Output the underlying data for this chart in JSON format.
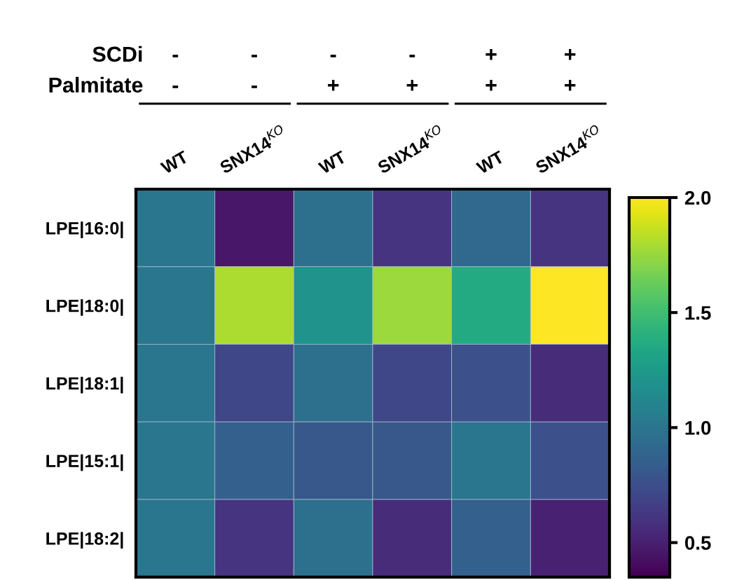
{
  "chart_data": {
    "type": "heatmap",
    "categories": [
      "WT",
      "SNX14$^{KO}$",
      "WT",
      "SNX14$^{KO}$",
      "WT",
      "SNX14$^{KO}$"
    ],
    "y_categories": [
      "LPE|16:0|",
      "LPE|18:0|",
      "LPE|18:1|",
      "LPE|15:1|",
      "LPE|18:2|"
    ],
    "cells": [
      [
        1.0,
        0.45,
        0.95,
        0.6,
        0.9,
        0.6
      ],
      [
        1.0,
        1.8,
        1.2,
        1.75,
        1.35,
        2.0
      ],
      [
        1.0,
        0.7,
        0.95,
        0.7,
        0.75,
        0.55
      ],
      [
        1.0,
        0.85,
        0.8,
        0.8,
        1.0,
        0.75
      ],
      [
        1.0,
        0.6,
        0.95,
        0.55,
        0.85,
        0.5
      ]
    ],
    "clim": [
      0.35,
      2.0
    ],
    "cticks": [
      {
        "value": 0.5,
        "label": "0.5"
      },
      {
        "value": 1,
        "label": "1.0"
      },
      {
        "value": 1.5,
        "label": "1.5"
      },
      {
        "value": 2,
        "label": "2.0"
      }
    ],
    "annotations": [
      "SCDi",
      "-",
      "-",
      "-",
      "-",
      "+",
      "+",
      "Palmitate",
      "-",
      "-",
      "+",
      "+",
      "+",
      "+"
    ]
  }
}
